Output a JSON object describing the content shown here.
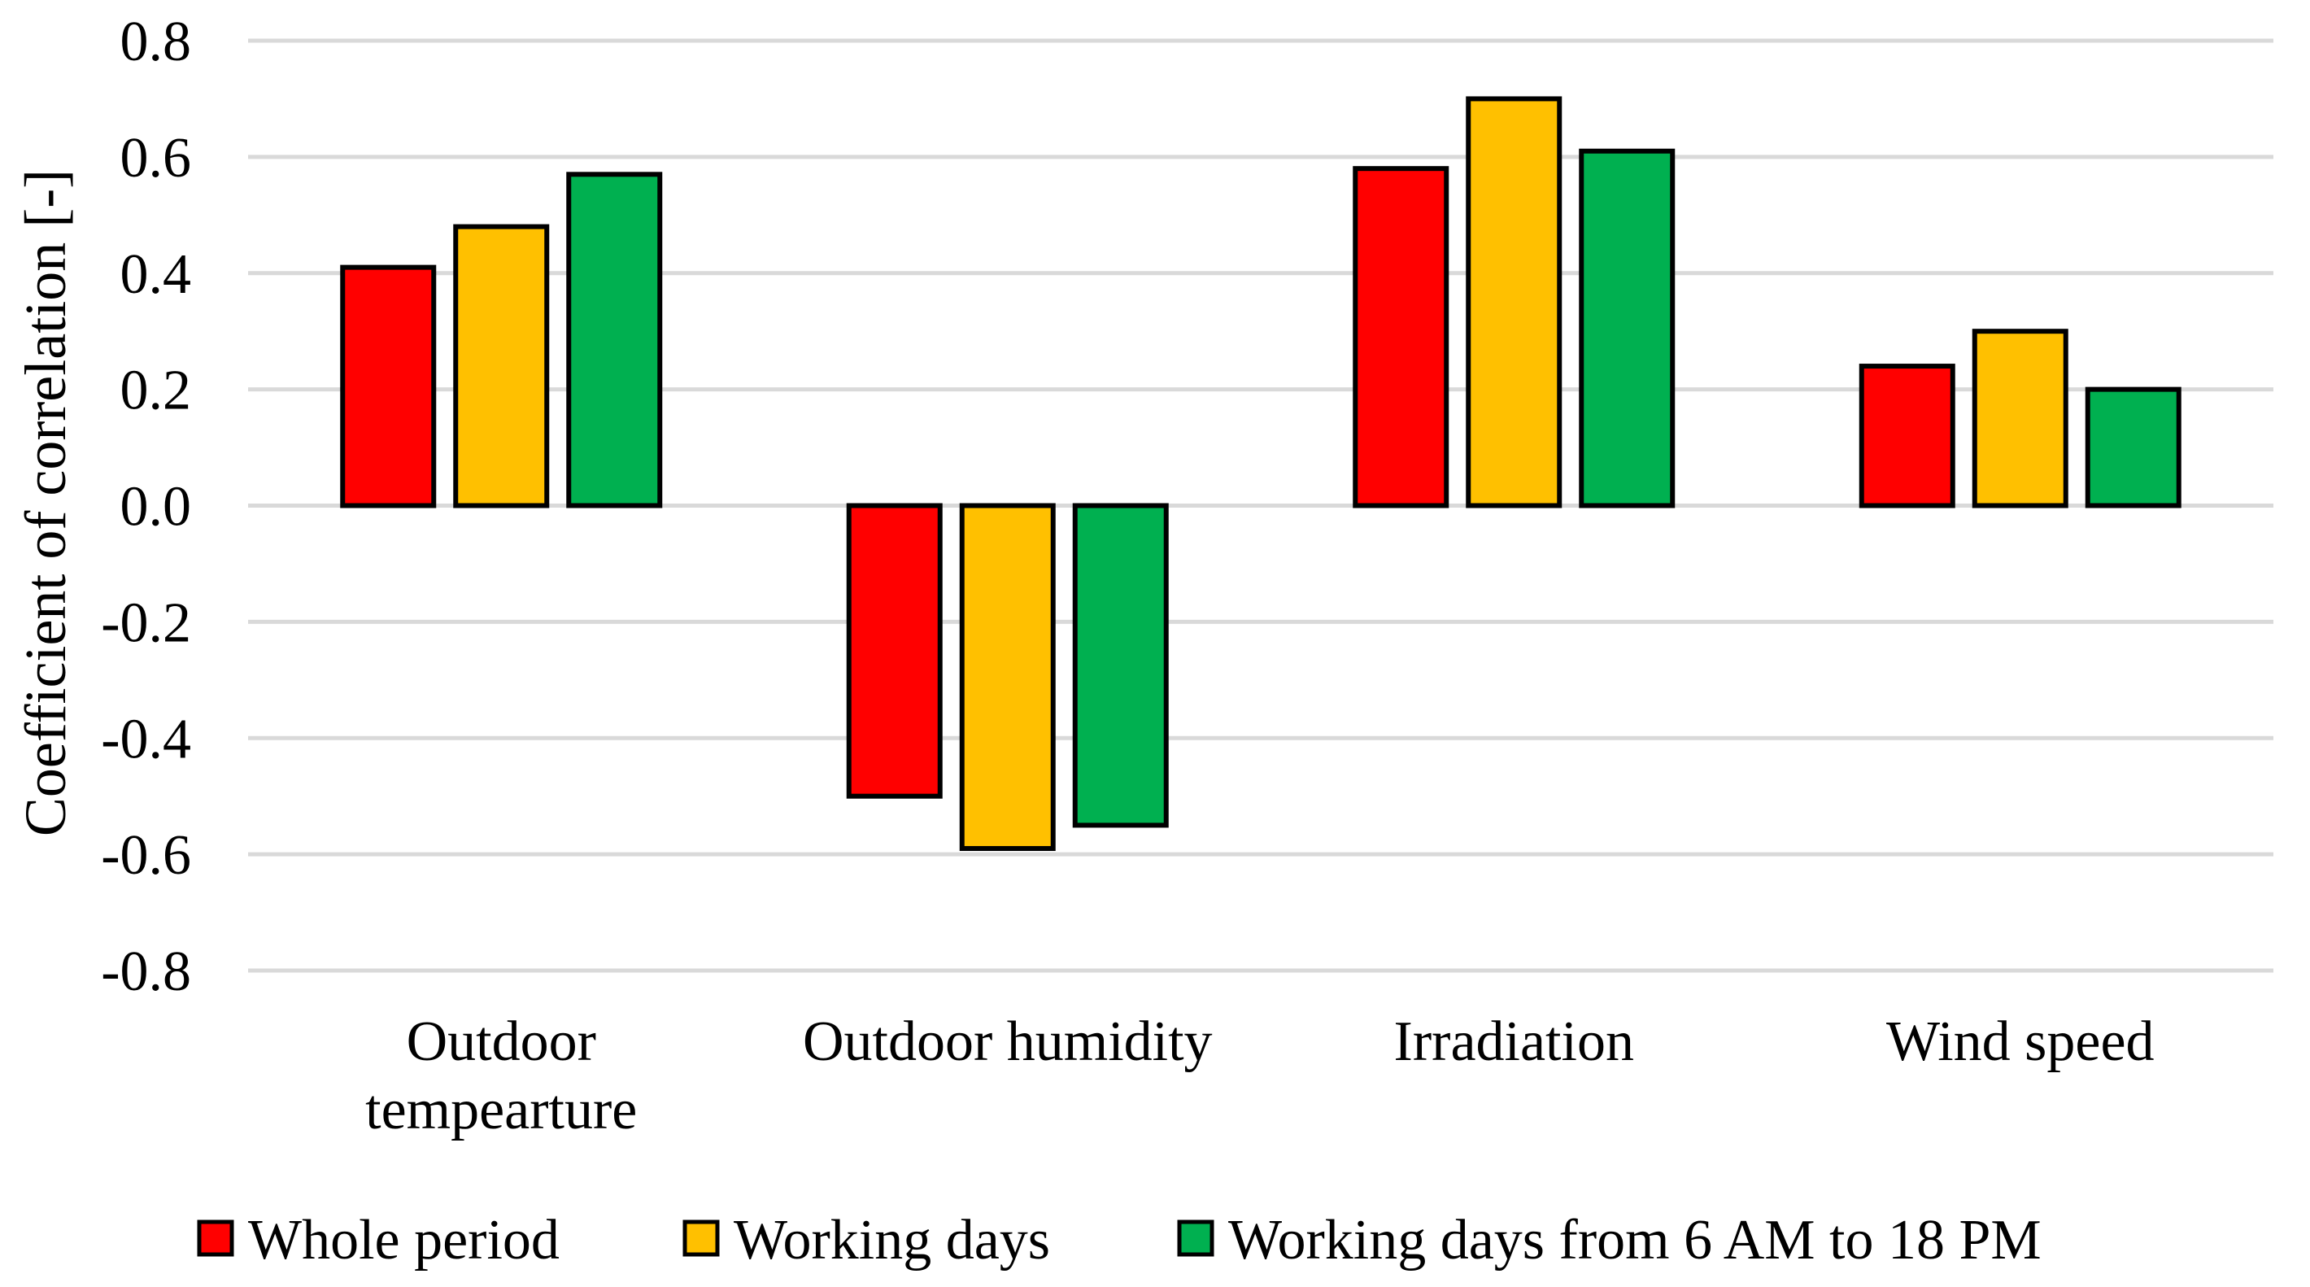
{
  "chart_data": {
    "type": "bar",
    "categories": [
      [
        "Outdoor",
        "tempearture"
      ],
      [
        "Outdoor humidity"
      ],
      [
        "Irradiation"
      ],
      [
        "Wind speed"
      ]
    ],
    "series": [
      {
        "name": "Whole period",
        "color": "#ff0000",
        "values": [
          0.41,
          -0.5,
          0.58,
          0.24
        ]
      },
      {
        "name": "Working days",
        "color": "#ffc000",
        "values": [
          0.48,
          -0.59,
          0.7,
          0.3
        ]
      },
      {
        "name": "Working days from 6 AM to 18 PM",
        "color": "#00b050",
        "values": [
          0.57,
          -0.55,
          0.61,
          0.2
        ]
      }
    ],
    "ylabel": "Coefficient of correlation [-]",
    "ylim": [
      -0.8,
      0.8
    ],
    "yticks": [
      "0.8",
      "0.6",
      "0.4",
      "0.2",
      "0.0",
      "-0.2",
      "-0.4",
      "-0.6",
      "-0.8"
    ],
    "ytick_values": [
      0.8,
      0.6,
      0.4,
      0.2,
      0.0,
      -0.2,
      -0.4,
      -0.6,
      -0.8
    ],
    "grid": true,
    "legend_position": "bottom"
  }
}
